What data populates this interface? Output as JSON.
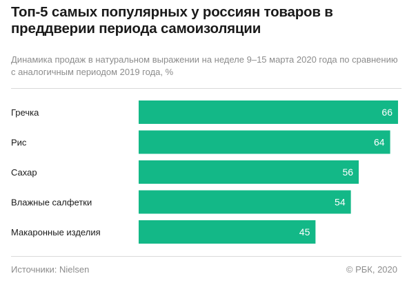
{
  "title": "Топ-5 самых популярных у россиян товаров в преддверии периода самоизоляции",
  "subtitle": "Динамика продаж в натуральном выражении на неделе 9–15 марта 2020 года по сравнению с аналогичным периодом 2019 года, %",
  "source": "Источники: Nielsen",
  "copyright": "© РБК, 2020",
  "colors": {
    "bar": "#13b887"
  },
  "chart_data": {
    "type": "bar",
    "orientation": "horizontal",
    "categories": [
      "Гречка",
      "Рис",
      "Сахар",
      "Влажные салфетки",
      "Макаронные изделия"
    ],
    "values": [
      66,
      64,
      56,
      54,
      45
    ],
    "xlim": [
      0,
      66
    ],
    "grid": false,
    "legend": "none"
  }
}
